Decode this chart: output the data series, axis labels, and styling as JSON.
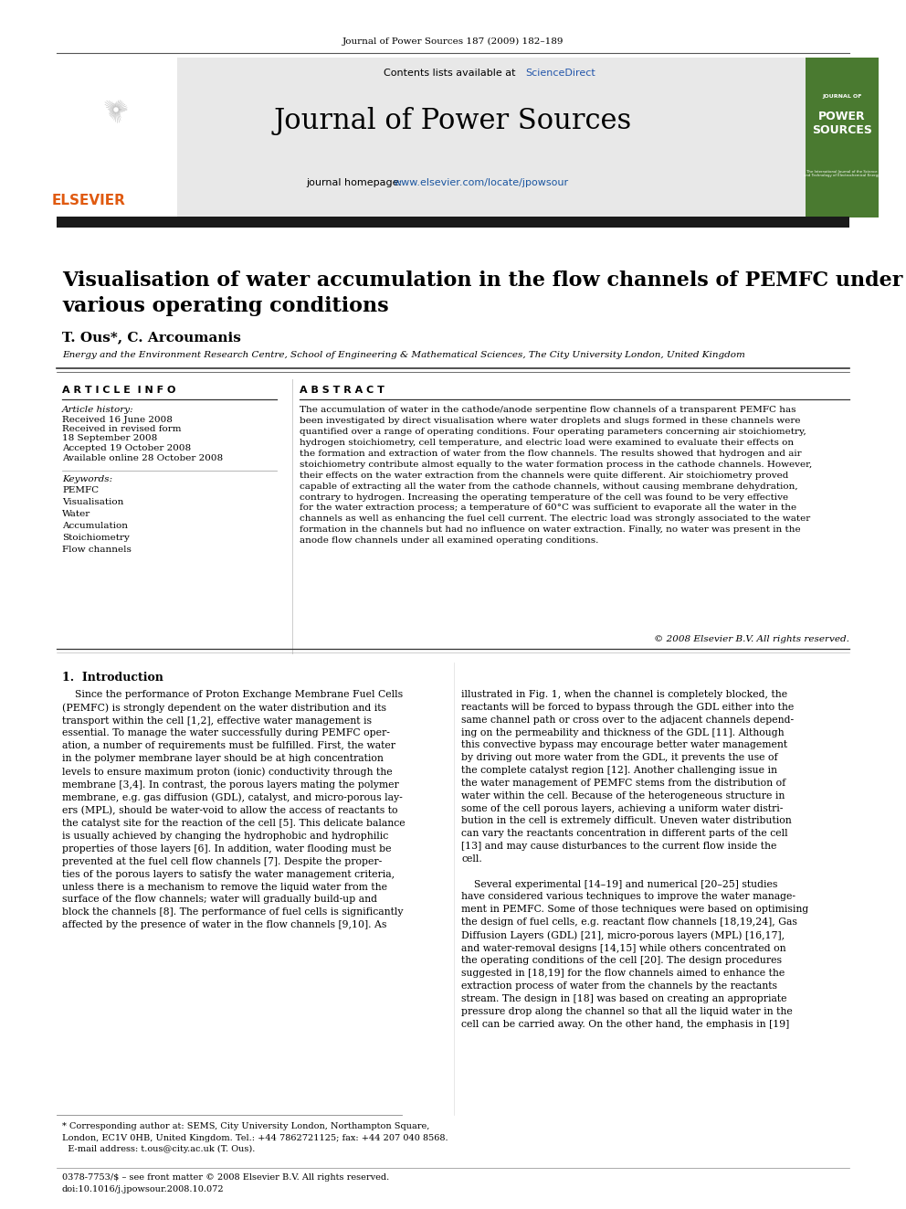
{
  "journal_ref": "Journal of Power Sources 187 (2009) 182–189",
  "contents_line": "Contents lists available at ",
  "sciencedirect_text": "ScienceDirect",
  "sciencedirect_color": "#2255aa",
  "journal_name": "Journal of Power Sources",
  "homepage_prefix": "journal homepage: ",
  "homepage_url": "www.elsevier.com/locate/jpowsour",
  "homepage_color": "#2255aa",
  "paper_title": "Visualisation of water accumulation in the flow channels of PEMFC under\nvarious operating conditions",
  "authors": "T. Ous*, C. Arcoumanis",
  "affiliation": "Energy and the Environment Research Centre, School of Engineering & Mathematical Sciences, The City University London, United Kingdom",
  "article_info_title": "A R T I C L E  I N F O",
  "article_history_label": "Article history:",
  "received1": "Received 16 June 2008",
  "received_revised": "Received in revised form",
  "revised_date": "18 September 2008",
  "accepted": "Accepted 19 October 2008",
  "available": "Available online 28 October 2008",
  "keywords_label": "Keywords:",
  "keywords": [
    "PEMFC",
    "Visualisation",
    "Water",
    "Accumulation",
    "Stoichiometry",
    "Flow channels"
  ],
  "abstract_title": "A B S T R A C T",
  "abstract_text": "The accumulation of water in the cathode/anode serpentine flow channels of a transparent PEMFC has\nbeen investigated by direct visualisation where water droplets and slugs formed in these channels were\nquantified over a range of operating conditions. Four operating parameters concerning air stoichiometry,\nhydrogen stoichiometry, cell temperature, and electric load were examined to evaluate their effects on\nthe formation and extraction of water from the flow channels. The results showed that hydrogen and air\nstoichiometry contribute almost equally to the water formation process in the cathode channels. However,\ntheir effects on the water extraction from the channels were quite different. Air stoichiometry proved\ncapable of extracting all the water from the cathode channels, without causing membrane dehydration,\ncontrary to hydrogen. Increasing the operating temperature of the cell was found to be very effective\nfor the water extraction process; a temperature of 60°C was sufficient to evaporate all the water in the\nchannels as well as enhancing the fuel cell current. The electric load was strongly associated to the water\nformation in the channels but had no influence on water extraction. Finally, no water was present in the\nanode flow channels under all examined operating conditions.",
  "copyright": "© 2008 Elsevier B.V. All rights reserved.",
  "intro_title": "1.  Introduction",
  "intro_col1": "    Since the performance of Proton Exchange Membrane Fuel Cells\n(PEMFC) is strongly dependent on the water distribution and its\ntransport within the cell [1,2], effective water management is\nessential. To manage the water successfully during PEMFC oper-\nation, a number of requirements must be fulfilled. First, the water\nin the polymer membrane layer should be at high concentration\nlevels to ensure maximum proton (ionic) conductivity through the\nmembrane [3,4]. In contrast, the porous layers mating the polymer\nmembrane, e.g. gas diffusion (GDL), catalyst, and micro-porous lay-\ners (MPL), should be water-void to allow the access of reactants to\nthe catalyst site for the reaction of the cell [5]. This delicate balance\nis usually achieved by changing the hydrophobic and hydrophilic\nproperties of those layers [6]. In addition, water flooding must be\nprevented at the fuel cell flow channels [7]. Despite the proper-\nties of the porous layers to satisfy the water management criteria,\nunless there is a mechanism to remove the liquid water from the\nsurface of the flow channels; water will gradually build-up and\nblock the channels [8]. The performance of fuel cells is significantly\naffected by the presence of water in the flow channels [9,10]. As",
  "intro_col2": "illustrated in Fig. 1, when the channel is completely blocked, the\nreactants will be forced to bypass through the GDL either into the\nsame channel path or cross over to the adjacent channels depend-\ning on the permeability and thickness of the GDL [11]. Although\nthis convective bypass may encourage better water management\nby driving out more water from the GDL, it prevents the use of\nthe complete catalyst region [12]. Another challenging issue in\nthe water management of PEMFC stems from the distribution of\nwater within the cell. Because of the heterogeneous structure in\nsome of the cell porous layers, achieving a uniform water distri-\nbution in the cell is extremely difficult. Uneven water distribution\ncan vary the reactants concentration in different parts of the cell\n[13] and may cause disturbances to the current flow inside the\ncell.\n\n    Several experimental [14–19] and numerical [20–25] studies\nhave considered various techniques to improve the water manage-\nment in PEMFC. Some of those techniques were based on optimising\nthe design of fuel cells, e.g. reactant flow channels [18,19,24], Gas\nDiffusion Layers (GDL) [21], micro-porous layers (MPL) [16,17],\nand water-removal designs [14,15] while others concentrated on\nthe operating conditions of the cell [20]. The design procedures\nsuggested in [18,19] for the flow channels aimed to enhance the\nextraction process of water from the channels by the reactants\nstream. The design in [18] was based on creating an appropriate\npressure drop along the channel so that all the liquid water in the\ncell can be carried away. On the other hand, the emphasis in [19]",
  "footnote1": "* Corresponding author at: SEMS, City University London, Northampton Square,\nLondon, EC1V 0HB, United Kingdom. Tel.: +44 7862721125; fax: +44 207 040 8568.\n  E-mail address: t.ous@city.ac.uk (T. Ous).",
  "footnote2": "0378-7753/$ – see front matter © 2008 Elsevier B.V. All rights reserved.\ndoi:10.1016/j.jpowsour.2008.10.072",
  "bg_header": "#e8e8e8",
  "bg_white": "#ffffff",
  "bg_journal_cover": "#4a7a30",
  "text_dark": "#000000",
  "text_gray": "#444444",
  "link_blue": "#1a55a0",
  "elsevier_orange": "#e05a10",
  "header_bar_color": "#1a1a1a",
  "divider_color": "#333333"
}
